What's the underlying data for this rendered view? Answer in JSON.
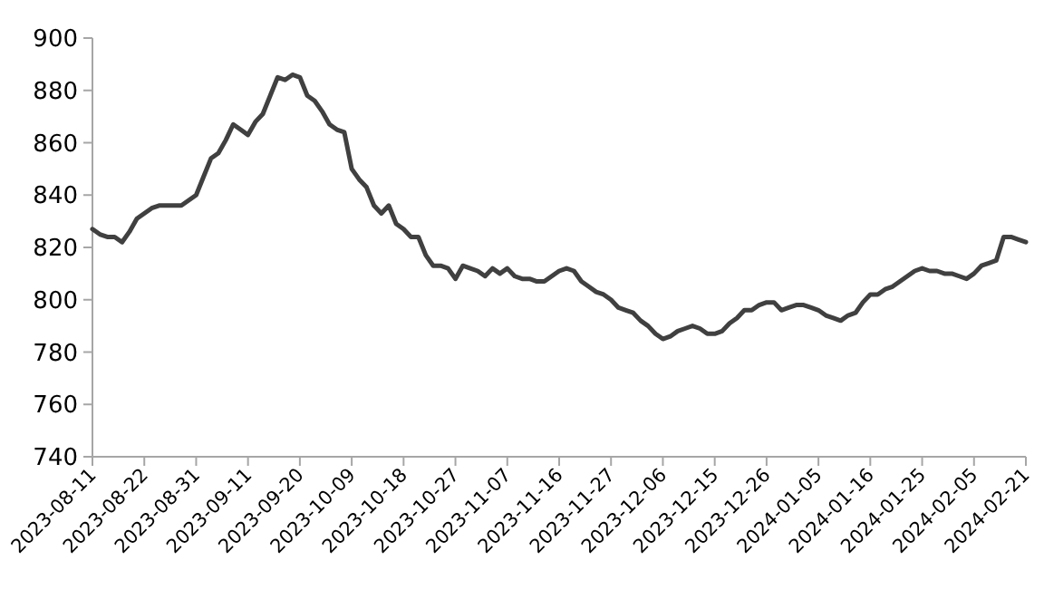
{
  "chart_data": {
    "type": "line",
    "categories": [
      "2023-08-11",
      null,
      null,
      null,
      null,
      null,
      null,
      "2023-08-22",
      null,
      null,
      null,
      null,
      null,
      null,
      "2023-08-31",
      null,
      null,
      null,
      null,
      null,
      null,
      "2023-09-11",
      null,
      null,
      null,
      null,
      null,
      null,
      "2023-09-20",
      null,
      null,
      null,
      null,
      null,
      null,
      "2023-10-09",
      null,
      null,
      null,
      null,
      null,
      null,
      "2023-10-18",
      null,
      null,
      null,
      null,
      null,
      null,
      "2023-10-27",
      null,
      null,
      null,
      null,
      null,
      null,
      "2023-11-07",
      null,
      null,
      null,
      null,
      null,
      null,
      "2023-11-16",
      null,
      null,
      null,
      null,
      null,
      null,
      "2023-11-27",
      null,
      null,
      null,
      null,
      null,
      null,
      "2023-12-06",
      null,
      null,
      null,
      null,
      null,
      null,
      "2023-12-15",
      null,
      null,
      null,
      null,
      null,
      null,
      "2023-12-26",
      null,
      null,
      null,
      null,
      null,
      null,
      "2024-01-05",
      null,
      null,
      null,
      null,
      null,
      null,
      "2024-01-16",
      null,
      null,
      null,
      null,
      null,
      null,
      "2024-01-25",
      null,
      null,
      null,
      null,
      null,
      null,
      "2024-02-05",
      null,
      null,
      null,
      null,
      null,
      null,
      "2024-02-21"
    ],
    "series": [
      {
        "color": "#404040",
        "values": [
          827,
          825,
          824,
          824,
          822,
          826,
          831,
          833,
          835,
          836,
          836,
          836,
          836,
          838,
          840,
          847,
          854,
          856,
          861,
          867,
          865,
          863,
          868,
          871,
          878,
          885,
          884,
          886,
          885,
          878,
          876,
          872,
          867,
          865,
          864,
          850,
          846,
          843,
          836,
          833,
          836,
          829,
          827,
          824,
          824,
          817,
          813,
          813,
          812,
          808,
          813,
          812,
          811,
          809,
          812,
          810,
          812,
          809,
          808,
          808,
          807,
          807,
          809,
          811,
          812,
          811,
          807,
          805,
          803,
          802,
          800,
          797,
          796,
          795,
          792,
          790,
          787,
          785,
          786,
          788,
          789,
          790,
          789,
          787,
          787,
          788,
          791,
          793,
          796,
          796,
          798,
          799,
          799,
          796,
          797,
          798,
          798,
          797,
          796,
          794,
          793,
          792,
          794,
          795,
          799,
          802,
          802,
          804,
          805,
          807,
          809,
          811,
          812,
          811,
          811,
          810,
          810,
          809,
          808,
          810,
          813,
          814,
          815,
          824,
          824,
          823,
          822
        ]
      }
    ],
    "ylim": [
      740,
      900
    ],
    "yticks": [
      740,
      760,
      780,
      800,
      820,
      840,
      860,
      880,
      900
    ],
    "grid": false,
    "marker": "none",
    "line_style": "solid"
  }
}
